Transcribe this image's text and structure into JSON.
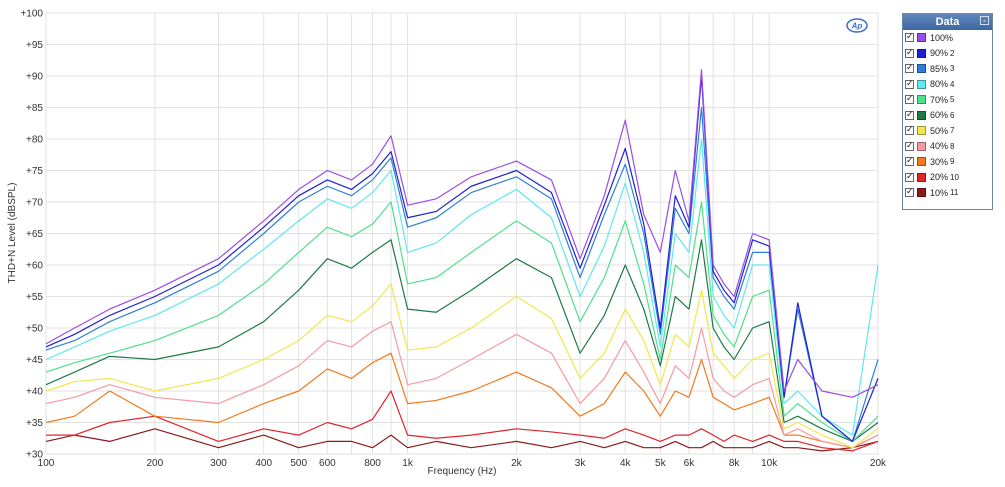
{
  "app": {
    "logo_text": "Ap"
  },
  "legend": {
    "title": "Data",
    "items": [
      {
        "label": "100%",
        "num": "",
        "color": "#9b4de8"
      },
      {
        "label": "90%",
        "num": "2",
        "color": "#1f1fd6"
      },
      {
        "label": "85%",
        "num": "3",
        "color": "#2e7fd6"
      },
      {
        "label": "80%",
        "num": "4",
        "color": "#5ee8f0"
      },
      {
        "label": "70%",
        "num": "5",
        "color": "#4fe08a"
      },
      {
        "label": "60%",
        "num": "6",
        "color": "#1e7a46"
      },
      {
        "label": "50%",
        "num": "7",
        "color": "#f0e84a"
      },
      {
        "label": "40%",
        "num": "8",
        "color": "#f59aa2"
      },
      {
        "label": "30%",
        "num": "9",
        "color": "#f07a1e"
      },
      {
        "label": "20%",
        "num": "10",
        "color": "#e0252a"
      },
      {
        "label": "10%",
        "num": "11",
        "color": "#8b1a1a"
      }
    ]
  },
  "chart_data": {
    "type": "line",
    "xlabel": "Frequency (Hz)",
    "ylabel": "THD+N Level (dBSPL)",
    "x_scale": "log",
    "xlim": [
      100,
      20000
    ],
    "ylim": [
      30,
      100
    ],
    "grid": true,
    "legend_position": "right",
    "x_ticks": [
      {
        "v": 100,
        "label": "100"
      },
      {
        "v": 200,
        "label": "200"
      },
      {
        "v": 300,
        "label": "300"
      },
      {
        "v": 400,
        "label": "400"
      },
      {
        "v": 500,
        "label": "500"
      },
      {
        "v": 600,
        "label": "600"
      },
      {
        "v": 800,
        "label": "800"
      },
      {
        "v": 1000,
        "label": "1k"
      },
      {
        "v": 2000,
        "label": "2k"
      },
      {
        "v": 3000,
        "label": "3k"
      },
      {
        "v": 4000,
        "label": "4k"
      },
      {
        "v": 5000,
        "label": "5k"
      },
      {
        "v": 6000,
        "label": "6k"
      },
      {
        "v": 8000,
        "label": "8k"
      },
      {
        "v": 10000,
        "label": "10k"
      },
      {
        "v": 20000,
        "label": "20k"
      }
    ],
    "y_ticks": [
      {
        "v": 100,
        "label": "+100"
      },
      {
        "v": 95,
        "label": "+95"
      },
      {
        "v": 90,
        "label": "+90"
      },
      {
        "v": 85,
        "label": "+85"
      },
      {
        "v": 80,
        "label": "+80"
      },
      {
        "v": 75,
        "label": "+75"
      },
      {
        "v": 70,
        "label": "+70"
      },
      {
        "v": 65,
        "label": "+65"
      },
      {
        "v": 60,
        "label": "+60"
      },
      {
        "v": 55,
        "label": "+55"
      },
      {
        "v": 50,
        "label": "+50"
      },
      {
        "v": 45,
        "label": "+45"
      },
      {
        "v": 40,
        "label": "+40"
      },
      {
        "v": 35,
        "label": "+35"
      },
      {
        "v": 30,
        "label": "+30"
      }
    ],
    "x": [
      100,
      120,
      150,
      200,
      300,
      400,
      500,
      600,
      700,
      800,
      900,
      1000,
      1200,
      1500,
      2000,
      2500,
      3000,
      3500,
      4000,
      4500,
      5000,
      5500,
      6000,
      6500,
      7000,
      7500,
      8000,
      9000,
      10000,
      11000,
      12000,
      14000,
      17000,
      20000
    ],
    "series": [
      {
        "name": "100%",
        "color": "#9b4de8",
        "values": [
          47.5,
          50,
          53,
          56,
          61,
          67,
          72,
          75,
          73.5,
          76,
          80.5,
          69.5,
          70.5,
          74,
          76.5,
          73.5,
          61,
          71,
          83,
          68,
          62,
          75,
          67,
          91,
          60,
          57,
          55,
          65,
          64,
          40,
          45,
          40,
          39,
          41
        ]
      },
      {
        "name": "90%",
        "color": "#1f1fd6",
        "values": [
          47,
          49,
          52,
          55,
          60,
          66,
          71,
          73.5,
          72,
          74.5,
          78,
          67.5,
          68.5,
          72.5,
          75,
          71.5,
          59.5,
          69.5,
          78.5,
          66.5,
          50,
          71,
          66,
          90,
          59,
          56,
          54,
          64,
          63,
          39,
          54,
          36,
          32,
          42
        ]
      },
      {
        "name": "85%",
        "color": "#2e7fd6",
        "values": [
          46.5,
          48,
          51,
          54,
          59,
          65,
          70,
          72.5,
          71,
          73.5,
          77,
          66,
          67.5,
          71.5,
          74,
          70.5,
          58,
          68,
          76,
          65,
          49,
          69,
          65,
          85,
          58,
          55,
          53,
          62,
          62,
          39,
          53,
          36,
          32,
          45
        ]
      },
      {
        "name": "80%",
        "color": "#5ee8f0",
        "values": [
          45,
          47,
          49.5,
          52,
          57,
          62.5,
          67,
          70.5,
          69,
          71.5,
          75,
          62,
          63.5,
          68,
          72,
          67.5,
          55,
          63,
          73,
          62,
          47,
          65,
          62,
          80,
          55,
          52,
          50,
          60,
          60,
          38,
          40,
          36,
          33,
          60
        ]
      },
      {
        "name": "70%",
        "color": "#4fe08a",
        "values": [
          43,
          44.5,
          46,
          48,
          52,
          57,
          62,
          66,
          64.5,
          66.5,
          70,
          57,
          58,
          62,
          67,
          63.5,
          51,
          58,
          67,
          57,
          45,
          60,
          58,
          70,
          52,
          49,
          47,
          55,
          56,
          36,
          38,
          35,
          32,
          36
        ]
      },
      {
        "name": "60%",
        "color": "#1e7a46",
        "values": [
          41,
          43,
          45.5,
          45,
          47,
          51,
          56,
          61,
          59.5,
          62,
          64,
          53,
          52.5,
          56,
          61,
          58,
          46,
          52,
          60,
          53,
          44,
          55,
          53,
          64,
          50,
          47,
          45,
          50,
          51,
          35,
          36,
          34,
          32,
          35
        ]
      },
      {
        "name": "50%",
        "color": "#f0e84a",
        "values": [
          40,
          41.5,
          42,
          40,
          42,
          45,
          48,
          52,
          51,
          53.5,
          57,
          46.5,
          47,
          50,
          55,
          51.5,
          42,
          46,
          53,
          48,
          41,
          49,
          47,
          56,
          46,
          44,
          42,
          45,
          46,
          34,
          35,
          33,
          31,
          34
        ]
      },
      {
        "name": "40%",
        "color": "#f59aa2",
        "values": [
          38,
          39,
          41,
          39,
          38,
          41,
          44,
          48,
          47,
          49.5,
          51,
          41,
          42,
          45,
          49,
          46,
          38,
          42,
          48,
          43,
          38,
          44,
          42,
          50,
          42,
          40,
          39,
          41,
          42,
          33,
          34,
          32,
          31,
          33
        ]
      },
      {
        "name": "30%",
        "color": "#f07a1e",
        "values": [
          35,
          36,
          40,
          36,
          35,
          38,
          40,
          43.5,
          42,
          44.5,
          46,
          38,
          38.5,
          40,
          43,
          40.5,
          36,
          38,
          43,
          40,
          36,
          40,
          39,
          45,
          39,
          38,
          37,
          38,
          39,
          33,
          33,
          32,
          31,
          33
        ]
      },
      {
        "name": "20%",
        "color": "#e0252a",
        "values": [
          33,
          33,
          35,
          36,
          32,
          34,
          33,
          35,
          34,
          35.5,
          40,
          33,
          32.5,
          33,
          34,
          33.5,
          33,
          32.5,
          34,
          33,
          32,
          33,
          33,
          34,
          33,
          32,
          33,
          32,
          33,
          32,
          32,
          31,
          30.5,
          32
        ]
      },
      {
        "name": "10%",
        "color": "#8b1a1a",
        "values": [
          32,
          33,
          32,
          34,
          31,
          33,
          31,
          32,
          32,
          31,
          33,
          31,
          32,
          31,
          32,
          31,
          32,
          31,
          32,
          31,
          31,
          32,
          31,
          31,
          32,
          31,
          31,
          31,
          32,
          31,
          31,
          30.5,
          31,
          32
        ]
      }
    ]
  }
}
